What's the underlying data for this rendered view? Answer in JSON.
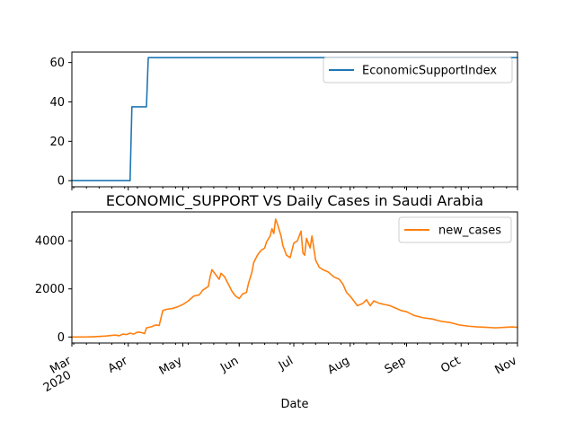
{
  "chart_data": [
    {
      "type": "line",
      "title": "",
      "xlabel": "",
      "ylabel": "",
      "ylim": [
        -3.1,
        65.3
      ],
      "yticks": [
        0,
        20,
        40,
        60
      ],
      "x_axis_kind": "date",
      "xlim": [
        "2020-03-01",
        "2020-11-01"
      ],
      "show_x_tick_labels": false,
      "grid": false,
      "legend_position": "upper-right",
      "series": [
        {
          "name": "EconomicSupportIndex",
          "color": "#1f77b4",
          "points": [
            [
              "2020-03-01",
              0
            ],
            [
              "2020-04-02",
              0
            ],
            [
              "2020-04-03",
              37.5
            ],
            [
              "2020-04-11",
              37.5
            ],
            [
              "2020-04-12",
              62.5
            ],
            [
              "2020-11-01",
              62.5
            ]
          ]
        }
      ]
    },
    {
      "type": "line",
      "title": "ECONOMIC_SUPPORT VS Daily Cases in Saudi Arabia",
      "xlabel": "Date",
      "ylabel": "",
      "ylim": [
        -250,
        5200
      ],
      "yticks": [
        0,
        2000,
        4000
      ],
      "x_axis_kind": "date",
      "xlim": [
        "2020-03-01",
        "2020-11-01"
      ],
      "grid": false,
      "legend_position": "upper-right",
      "x_tick_labels": [
        {
          "date": "2020-03-01",
          "label": "Mar",
          "sublabel": "2020"
        },
        {
          "date": "2020-04-01",
          "label": "Apr"
        },
        {
          "date": "2020-05-01",
          "label": "May"
        },
        {
          "date": "2020-06-01",
          "label": "Jun"
        },
        {
          "date": "2020-07-01",
          "label": "Jul"
        },
        {
          "date": "2020-08-01",
          "label": "Aug"
        },
        {
          "date": "2020-09-01",
          "label": "Sep"
        },
        {
          "date": "2020-10-01",
          "label": "Oct"
        },
        {
          "date": "2020-11-01",
          "label": "Nov"
        }
      ],
      "series": [
        {
          "name": "new_cases",
          "color": "#ff7f0e",
          "points": [
            [
              "2020-03-01",
              0
            ],
            [
              "2020-03-10",
              5
            ],
            [
              "2020-03-15",
              20
            ],
            [
              "2020-03-20",
              40
            ],
            [
              "2020-03-22",
              60
            ],
            [
              "2020-03-25",
              80
            ],
            [
              "2020-03-27",
              50
            ],
            [
              "2020-03-29",
              120
            ],
            [
              "2020-03-31",
              100
            ],
            [
              "2020-04-02",
              160
            ],
            [
              "2020-04-04",
              120
            ],
            [
              "2020-04-06",
              200
            ],
            [
              "2020-04-08",
              190
            ],
            [
              "2020-04-10",
              140
            ],
            [
              "2020-04-11",
              380
            ],
            [
              "2020-04-14",
              430
            ],
            [
              "2020-04-16",
              500
            ],
            [
              "2020-04-18",
              480
            ],
            [
              "2020-04-20",
              1100
            ],
            [
              "2020-04-22",
              1150
            ],
            [
              "2020-04-25",
              1180
            ],
            [
              "2020-04-28",
              1250
            ],
            [
              "2020-05-01",
              1350
            ],
            [
              "2020-05-04",
              1500
            ],
            [
              "2020-05-07",
              1700
            ],
            [
              "2020-05-10",
              1750
            ],
            [
              "2020-05-12",
              1950
            ],
            [
              "2020-05-15",
              2100
            ],
            [
              "2020-05-16",
              2500
            ],
            [
              "2020-05-17",
              2800
            ],
            [
              "2020-05-19",
              2600
            ],
            [
              "2020-05-21",
              2400
            ],
            [
              "2020-05-22",
              2650
            ],
            [
              "2020-05-24",
              2500
            ],
            [
              "2020-05-26",
              2200
            ],
            [
              "2020-05-28",
              1900
            ],
            [
              "2020-05-30",
              1700
            ],
            [
              "2020-06-01",
              1600
            ],
            [
              "2020-06-03",
              1800
            ],
            [
              "2020-06-05",
              1850
            ],
            [
              "2020-06-06",
              2200
            ],
            [
              "2020-06-08",
              2700
            ],
            [
              "2020-06-09",
              3100
            ],
            [
              "2020-06-11",
              3400
            ],
            [
              "2020-06-13",
              3600
            ],
            [
              "2020-06-15",
              3700
            ],
            [
              "2020-06-16",
              3950
            ],
            [
              "2020-06-18",
              4200
            ],
            [
              "2020-06-19",
              4500
            ],
            [
              "2020-06-20",
              4300
            ],
            [
              "2020-06-21",
              4900
            ],
            [
              "2020-06-22",
              4700
            ],
            [
              "2020-06-24",
              4200
            ],
            [
              "2020-06-25",
              3800
            ],
            [
              "2020-06-27",
              3400
            ],
            [
              "2020-06-29",
              3300
            ],
            [
              "2020-07-01",
              3900
            ],
            [
              "2020-07-03",
              4000
            ],
            [
              "2020-07-05",
              4400
            ],
            [
              "2020-07-06",
              3500
            ],
            [
              "2020-07-07",
              3400
            ],
            [
              "2020-07-08",
              4100
            ],
            [
              "2020-07-10",
              3700
            ],
            [
              "2020-07-11",
              4200
            ],
            [
              "2020-07-13",
              3200
            ],
            [
              "2020-07-15",
              2900
            ],
            [
              "2020-07-17",
              2800
            ],
            [
              "2020-07-20",
              2700
            ],
            [
              "2020-07-23",
              2500
            ],
            [
              "2020-07-26",
              2400
            ],
            [
              "2020-07-28",
              2200
            ],
            [
              "2020-07-30",
              1850
            ],
            [
              "2020-08-01",
              1700
            ],
            [
              "2020-08-03",
              1500
            ],
            [
              "2020-08-05",
              1300
            ],
            [
              "2020-08-08",
              1400
            ],
            [
              "2020-08-10",
              1550
            ],
            [
              "2020-08-12",
              1300
            ],
            [
              "2020-08-14",
              1500
            ],
            [
              "2020-08-17",
              1400
            ],
            [
              "2020-08-20",
              1350
            ],
            [
              "2020-08-23",
              1300
            ],
            [
              "2020-08-26",
              1200
            ],
            [
              "2020-08-29",
              1100
            ],
            [
              "2020-09-01",
              1050
            ],
            [
              "2020-09-05",
              900
            ],
            [
              "2020-09-10",
              800
            ],
            [
              "2020-09-15",
              750
            ],
            [
              "2020-09-20",
              650
            ],
            [
              "2020-09-25",
              600
            ],
            [
              "2020-09-30",
              500
            ],
            [
              "2020-10-05",
              450
            ],
            [
              "2020-10-10",
              420
            ],
            [
              "2020-10-15",
              400
            ],
            [
              "2020-10-20",
              380
            ],
            [
              "2020-10-25",
              400
            ],
            [
              "2020-10-29",
              420
            ],
            [
              "2020-11-01",
              400
            ]
          ]
        }
      ]
    }
  ]
}
